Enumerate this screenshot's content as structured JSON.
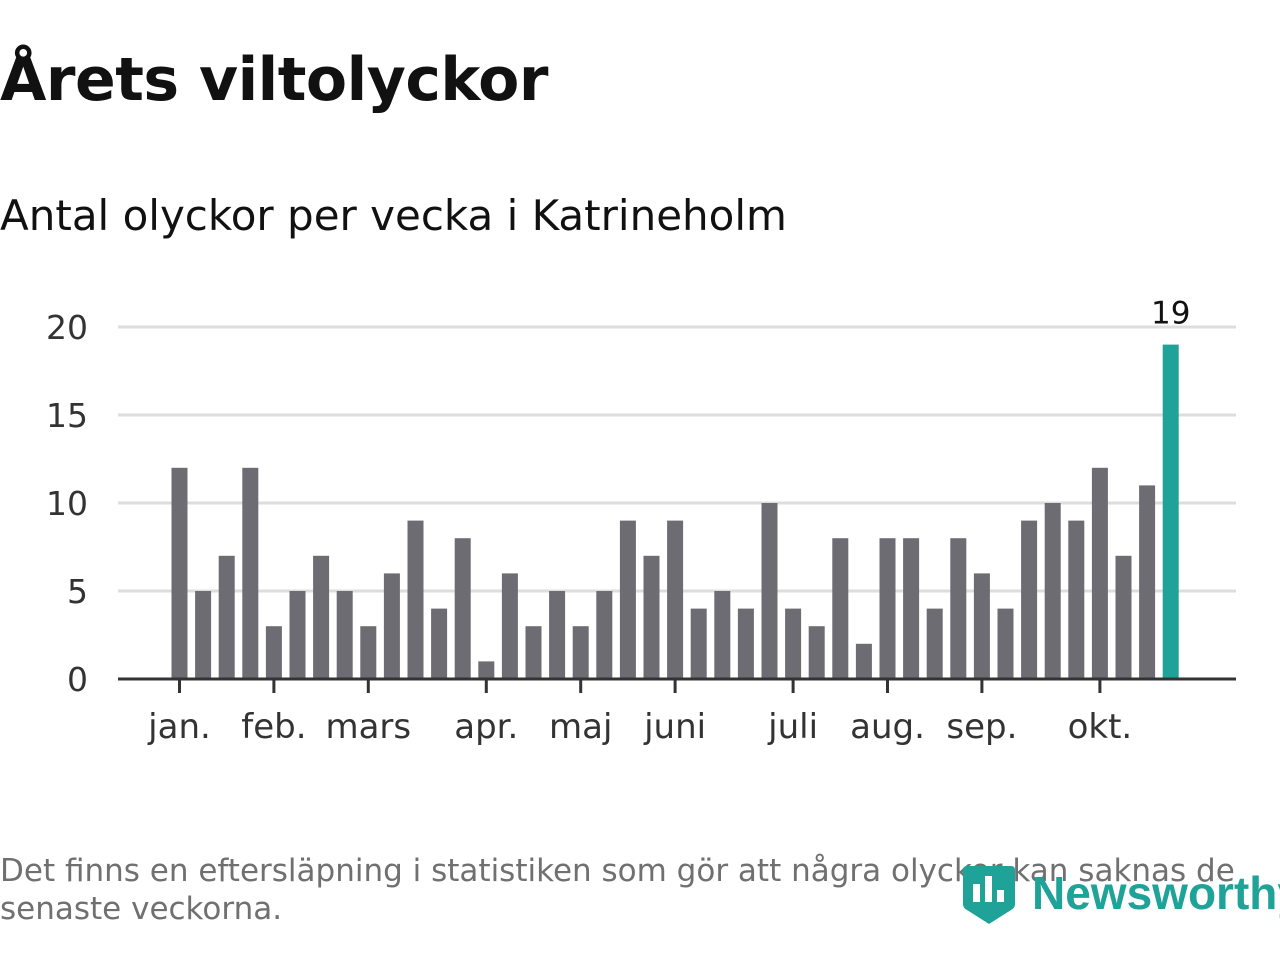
{
  "header": {
    "title": "Årets viltolyckor",
    "subtitle": "Antal olyckor per vecka i Katrineholm"
  },
  "chart_data": {
    "type": "bar",
    "title": "Årets viltolyckor",
    "subtitle": "Antal olyckor per vecka i Katrineholm",
    "xlabel": "",
    "ylabel": "",
    "ylim": [
      0,
      20
    ],
    "yticks": [
      0,
      5,
      10,
      15,
      20
    ],
    "grid": true,
    "legend": "none",
    "month_labels": [
      "jan.",
      "feb.",
      "mars",
      "apr.",
      "maj",
      "juni",
      "juli",
      "aug.",
      "sep.",
      "okt."
    ],
    "month_tick_weeks": [
      1,
      5,
      9,
      14,
      18,
      22,
      27,
      31,
      35,
      40
    ],
    "series": [
      {
        "values": [
          12,
          5,
          7,
          12,
          3,
          5,
          7,
          5,
          3,
          6,
          9,
          4,
          8,
          1,
          6,
          3,
          5,
          3,
          5,
          9,
          7,
          9,
          4,
          5,
          4,
          10,
          4,
          3,
          8,
          2,
          8,
          8,
          4,
          8,
          6,
          4,
          9,
          10,
          9,
          12,
          7,
          11,
          19
        ]
      }
    ],
    "highlight_index": 42,
    "highlight_label": "19",
    "colors": {
      "bar": "#6d6c72",
      "highlight": "#1fa398",
      "grid": "#dddddd",
      "axis": "#333333",
      "tick_text": "#333333"
    }
  },
  "footer": {
    "note": "Det finns en eftersläpning i statistiken som gör att några olyckor kan saknas de senaste veckorna.",
    "brand_name": "Newsworthy",
    "brand_color": "#1fa398",
    "brand_icon": "newsworthy-logo-icon"
  }
}
